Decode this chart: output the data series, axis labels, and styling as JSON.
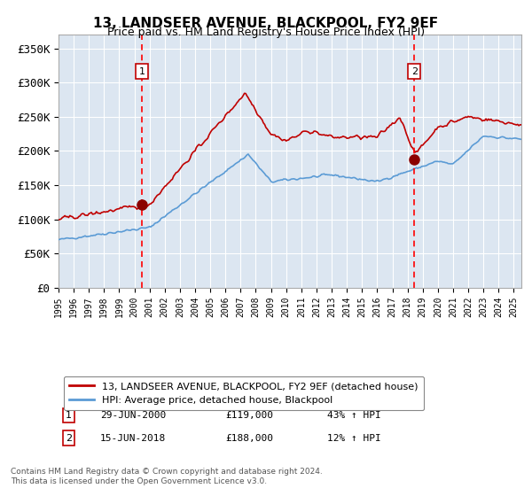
{
  "title": "13, LANDSEER AVENUE, BLACKPOOL, FY2 9EF",
  "subtitle": "Price paid vs. HM Land Registry's House Price Index (HPI)",
  "legend_line1": "13, LANDSEER AVENUE, BLACKPOOL, FY2 9EF (detached house)",
  "legend_line2": "HPI: Average price, detached house, Blackpool",
  "annotation1_date": "29-JUN-2000",
  "annotation1_price": 119000,
  "annotation1_pct": "43% ↑ HPI",
  "annotation1_year": 2000.49,
  "annotation2_date": "15-JUN-2018",
  "annotation2_price": 188000,
  "annotation2_pct": "12% ↑ HPI",
  "annotation2_year": 2018.45,
  "yticks": [
    0,
    50000,
    100000,
    150000,
    200000,
    250000,
    300000,
    350000
  ],
  "ytick_labels": [
    "£0",
    "£50K",
    "£100K",
    "£150K",
    "£200K",
    "£250K",
    "£300K",
    "£350K"
  ],
  "ylim": [
    0,
    370000
  ],
  "hpi_color": "#5b9bd5",
  "property_color": "#c00000",
  "marker_color": "#8b0000",
  "vline_color": "#ff0000",
  "bg_color": "#dce6f1",
  "grid_color": "#ffffff",
  "box_color": "#c00000",
  "copyright_text": "Contains HM Land Registry data © Crown copyright and database right 2024.\nThis data is licensed under the Open Government Licence v3.0.",
  "xstart": 1995.0,
  "xend": 2025.5
}
